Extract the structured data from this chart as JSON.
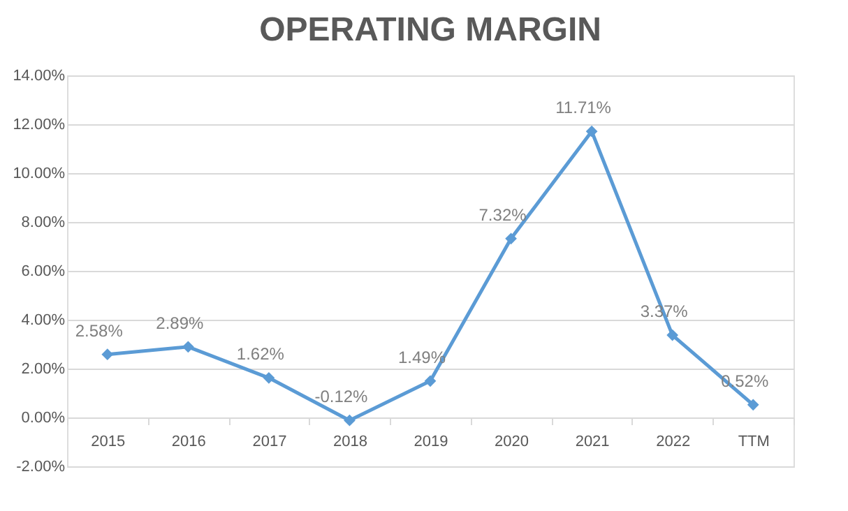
{
  "chart_data": {
    "type": "line",
    "title": "OPERATING MARGIN",
    "categories": [
      "2015",
      "2016",
      "2017",
      "2018",
      "2019",
      "2020",
      "2021",
      "2022",
      "TTM"
    ],
    "series": [
      {
        "color": "#5b9bd5",
        "values": [
          2.58,
          2.89,
          1.62,
          -0.12,
          1.49,
          7.32,
          11.71,
          3.37,
          0.52
        ],
        "value_labels": [
          "2.58%",
          "2.89%",
          "1.62%",
          "-0.12%",
          "1.49%",
          "7.32%",
          "11.71%",
          "3.37%",
          "0.52%"
        ]
      }
    ],
    "ylim": [
      -2,
      14
    ],
    "yticks": [
      {
        "value": -2,
        "label": "-2.00%"
      },
      {
        "value": 0,
        "label": "0.00%"
      },
      {
        "value": 2,
        "label": "2.00%"
      },
      {
        "value": 4,
        "label": "4.00%"
      },
      {
        "value": 6,
        "label": "6.00%"
      },
      {
        "value": 8,
        "label": "8.00%"
      },
      {
        "value": 10,
        "label": "10.00%"
      },
      {
        "value": 12,
        "label": "12.00%"
      },
      {
        "value": 14,
        "label": "14.00%"
      }
    ],
    "grid": "y",
    "marker": "diamond",
    "line_style": "solid"
  }
}
